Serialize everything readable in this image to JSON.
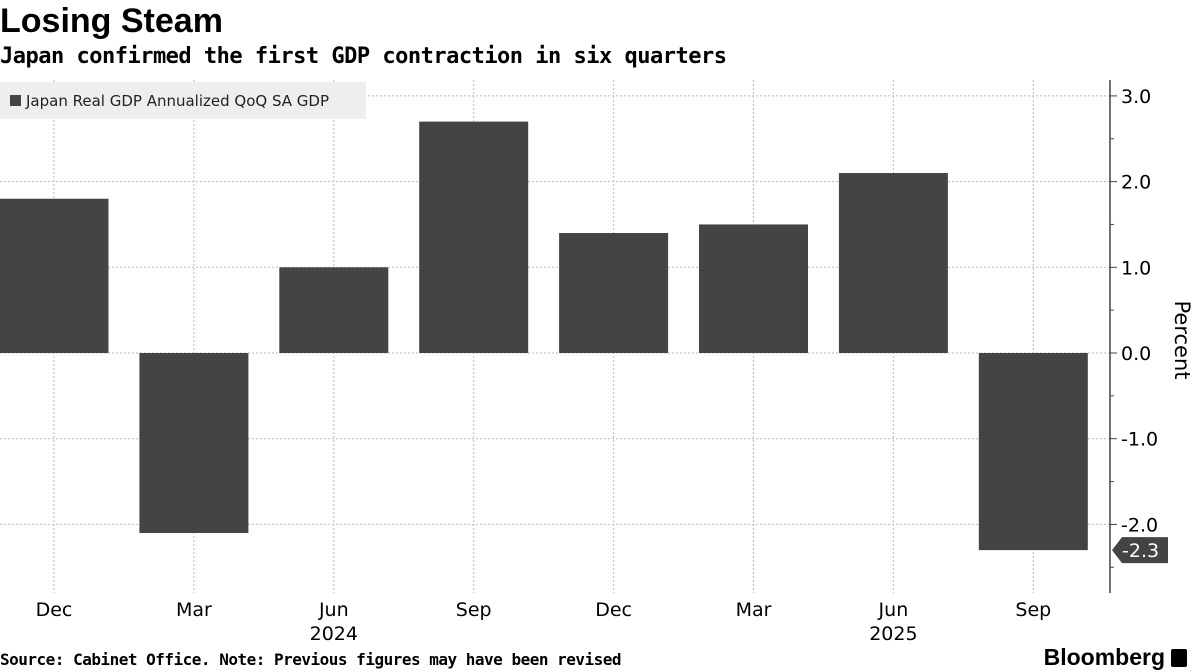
{
  "title": "Losing Steam",
  "subtitle": "Japan confirmed the first GDP contraction in six quarters",
  "source": "Source: Cabinet Office. Note: Previous figures may have been revised",
  "brand": "Bloomberg",
  "colors": {
    "bar": "#444444",
    "grid": "#bbbbbb",
    "legend_bg": "#eeeeee"
  },
  "chart_data": {
    "type": "bar",
    "title": "Losing Steam",
    "categories": [
      "Dec",
      "Mar",
      "Jun",
      "Sep",
      "Dec",
      "Mar",
      "Jun",
      "Sep"
    ],
    "year_labels": [
      {
        "index": 2,
        "label": "2024"
      },
      {
        "index": 6,
        "label": "2025"
      }
    ],
    "series": [
      {
        "name": "Japan Real GDP Annualized QoQ SA GDP",
        "values": [
          1.8,
          -2.1,
          1.0,
          2.7,
          1.4,
          1.5,
          2.1,
          -2.3
        ]
      }
    ],
    "ylabel": "Percent",
    "ylim": [
      -2.8,
      3.2
    ],
    "yticks": [
      3.0,
      2.0,
      1.0,
      0.0,
      -1.0,
      -2.0
    ],
    "last_value_label": "-2.3",
    "legend_position": "top-left",
    "grid": true
  }
}
